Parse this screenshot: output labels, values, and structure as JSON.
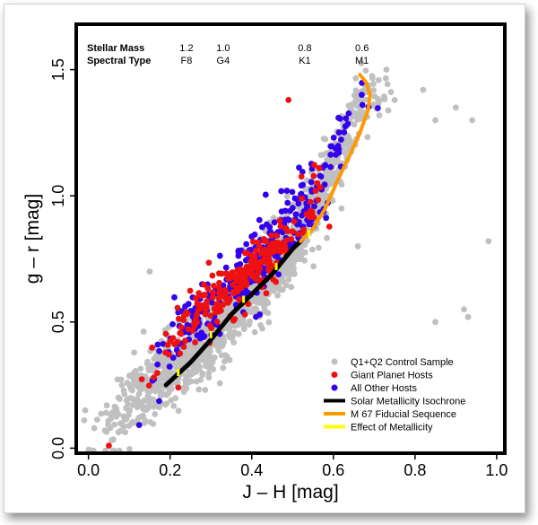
{
  "chart_data": {
    "type": "scatter",
    "xlabel": "J – H  [mag]",
    "ylabel": "g – r  [mag]",
    "xlim": [
      -0.03,
      1.02
    ],
    "ylim": [
      -0.02,
      1.68
    ],
    "xticks": [
      "0.0",
      "0.2",
      "0.4",
      "0.6",
      "0.8",
      "1.0"
    ],
    "yticks": [
      "0.0",
      "0.5",
      "1.0",
      "1.5"
    ],
    "grid": false,
    "legend_position": "bottom-right",
    "header": {
      "mass_label": "Stellar Mass",
      "spec_label": "Spectral Type",
      "columns": [
        {
          "jh": 0.24,
          "mass": "1.2",
          "spec": "F8"
        },
        {
          "jh": 0.33,
          "mass": "1.0",
          "spec": "G4"
        },
        {
          "jh": 0.53,
          "mass": "0.8",
          "spec": "K1"
        },
        {
          "jh": 0.67,
          "mass": "0.6",
          "spec": "M1"
        }
      ]
    },
    "colors": {
      "control": "#c0c0c0",
      "giant": "#ee1111",
      "other": "#3300ee",
      "isochrone": "#000000",
      "fiducial": "#ff9900",
      "metallicity": "#ffff00"
    },
    "series": [
      {
        "name": "Q1+Q2 Control Sample",
        "kind": "scatter",
        "distribution": {
          "x_range": [
            0.0,
            0.75
          ],
          "ridge": [
            [
              0.0,
              0.03
            ],
            [
              0.2,
              0.3
            ],
            [
              0.3,
              0.45
            ],
            [
              0.4,
              0.63
            ],
            [
              0.5,
              0.8
            ],
            [
              0.6,
              1.12
            ],
            [
              0.68,
              1.4
            ]
          ],
          "scatter_sigma": 0.07,
          "count": 1600
        },
        "outliers": [
          [
            0.73,
            1.5
          ],
          [
            0.75,
            1.38
          ],
          [
            0.82,
            1.42
          ],
          [
            0.85,
            1.3
          ],
          [
            0.9,
            1.35
          ],
          [
            0.94,
            1.3
          ],
          [
            0.98,
            0.82
          ],
          [
            0.92,
            0.55
          ],
          [
            0.93,
            0.52
          ],
          [
            0.66,
            0.8
          ],
          [
            0.62,
            0.95
          ],
          [
            0.15,
            0.7
          ],
          [
            0.85,
            0.5
          ]
        ]
      },
      {
        "name": "Giant Planet Hosts",
        "kind": "scatter",
        "distribution": {
          "x_range": [
            0.12,
            0.6
          ],
          "ridge": [
            [
              0.12,
              0.25
            ],
            [
              0.25,
              0.5
            ],
            [
              0.33,
              0.6
            ],
            [
              0.42,
              0.72
            ],
            [
              0.5,
              0.88
            ],
            [
              0.56,
              1.0
            ]
          ],
          "scatter_sigma": 0.06,
          "count": 230
        },
        "outliers": [
          [
            0.05,
            0.01
          ],
          [
            0.49,
            1.38
          ],
          [
            0.22,
            0.24
          ],
          [
            0.16,
            0.28
          ]
        ]
      },
      {
        "name": "All Other Hosts",
        "kind": "scatter",
        "distribution": {
          "x_range": [
            0.12,
            0.7
          ],
          "ridge": [
            [
              0.12,
              0.25
            ],
            [
              0.25,
              0.5
            ],
            [
              0.35,
              0.63
            ],
            [
              0.45,
              0.8
            ],
            [
              0.55,
              1.0
            ],
            [
              0.62,
              1.2
            ],
            [
              0.66,
              1.38
            ]
          ],
          "scatter_sigma": 0.07,
          "count": 330
        }
      },
      {
        "name": "Solar Metallicity Isochrone",
        "kind": "line",
        "x": [
          0.19,
          0.25,
          0.3,
          0.35,
          0.4,
          0.45,
          0.5,
          0.52
        ],
        "y": [
          0.25,
          0.34,
          0.43,
          0.53,
          0.61,
          0.69,
          0.79,
          0.82
        ]
      },
      {
        "name": "M 67 Fiducial Sequence",
        "kind": "line",
        "x": [
          0.52,
          0.55,
          0.58,
          0.61,
          0.64,
          0.665,
          0.685,
          0.69,
          0.68,
          0.665
        ],
        "y": [
          0.82,
          0.87,
          0.95,
          1.06,
          1.16,
          1.25,
          1.34,
          1.4,
          1.45,
          1.48
        ]
      },
      {
        "name": "Effect of Metallicity",
        "kind": "segments",
        "points": [
          [
            0.22,
            0.3
          ],
          [
            0.3,
            0.45
          ],
          [
            0.38,
            0.59
          ],
          [
            0.46,
            0.72
          ],
          [
            0.54,
            0.85
          ]
        ]
      }
    ]
  }
}
